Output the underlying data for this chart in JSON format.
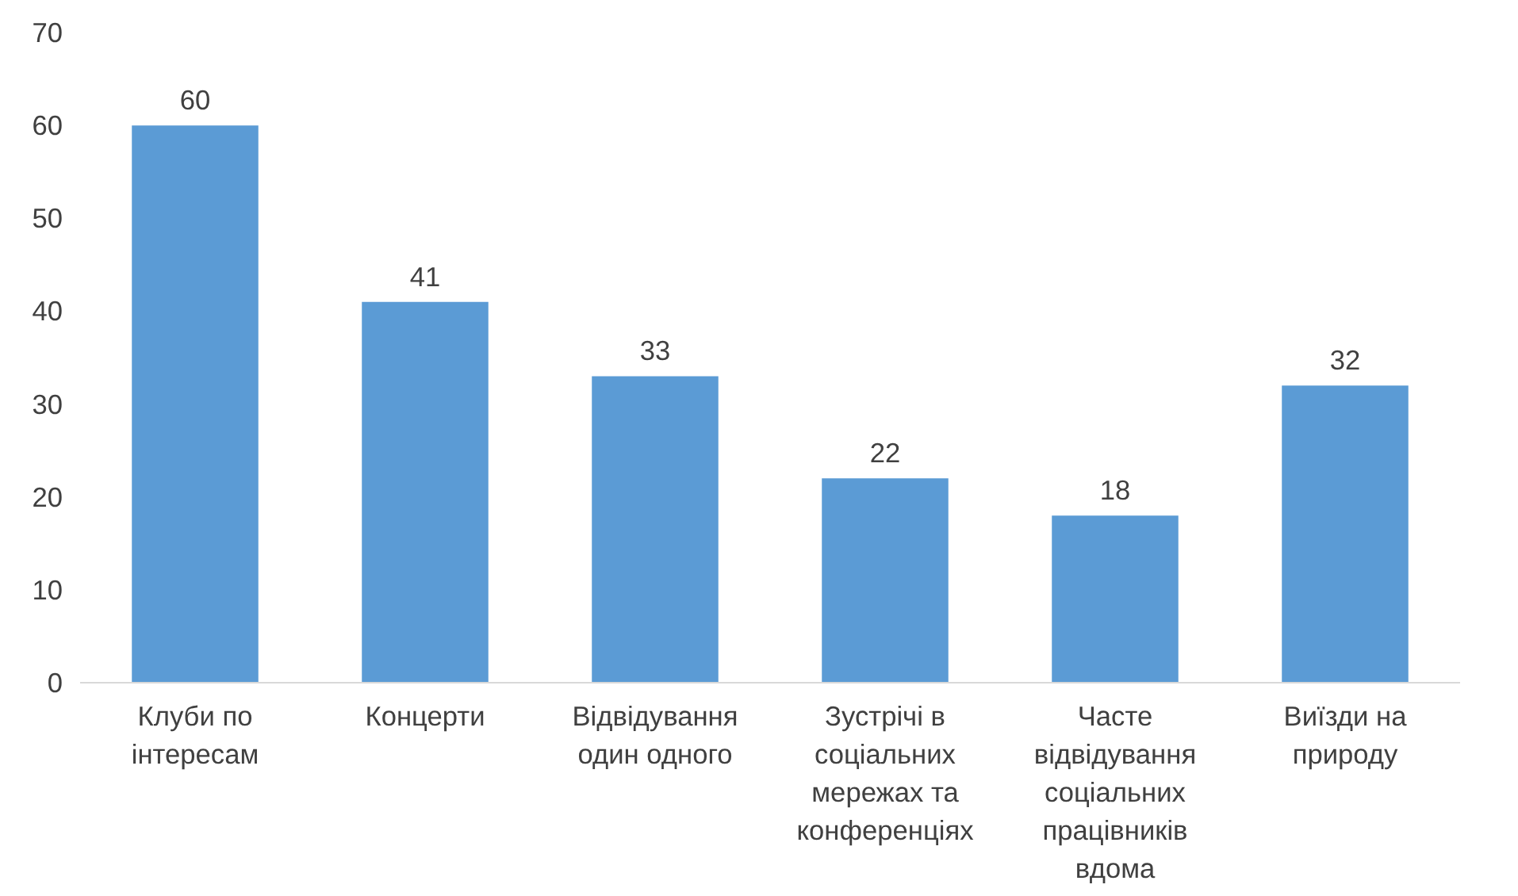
{
  "chart_data": {
    "type": "bar",
    "categories": [
      "Клуби по інтересам",
      "Концерти",
      "Відвідування один одного",
      "Зустрічі в соціальних мережах та конференціях",
      "Часте відвідування соціальних працівників вдома",
      "Виїзди на природу"
    ],
    "values": [
      60,
      41,
      33,
      22,
      18,
      32
    ],
    "color": "#5b9bd5",
    "ylim": [
      0,
      70
    ],
    "yticks": [
      0,
      10,
      20,
      30,
      40,
      50,
      60,
      70
    ],
    "data_labels": true,
    "grid": false
  }
}
